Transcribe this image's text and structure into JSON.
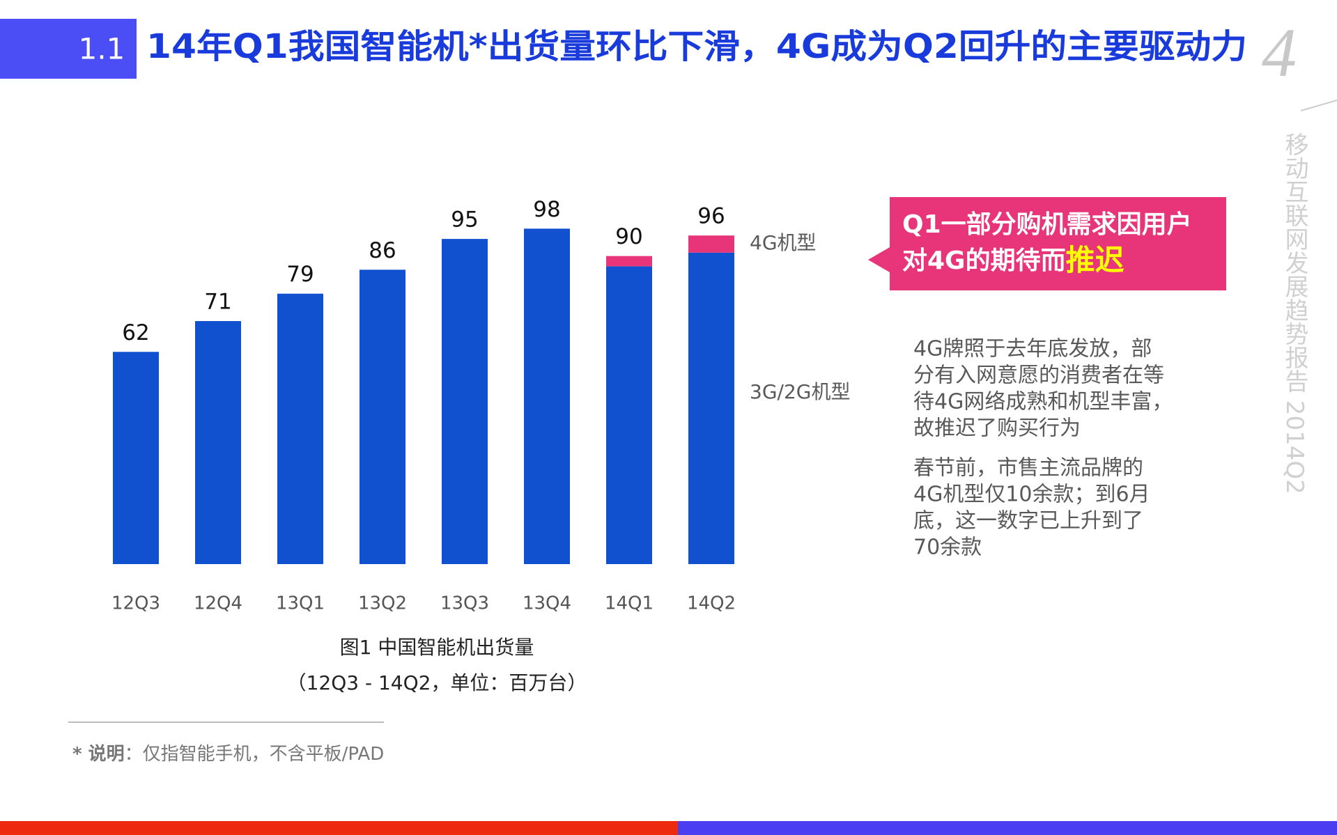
{
  "header": {
    "number": "1.1",
    "title": "14年Q1我国智能机*出货量环比下滑，4G成为Q2回升的主要驱动力",
    "page": "4",
    "report": "移动互联网发展趋势报告 2014Q2"
  },
  "chart_data": {
    "type": "stacked-bar",
    "categories": [
      "12Q3",
      "12Q4",
      "13Q1",
      "13Q2",
      "13Q3",
      "13Q4",
      "14Q1",
      "14Q2"
    ],
    "series": [
      {
        "name": "3G/2G机型",
        "color": "#1150cf",
        "values": [
          62,
          71,
          79,
          86,
          95,
          98,
          87,
          91
        ]
      },
      {
        "name": "4G机型",
        "color": "#e8357a",
        "values": [
          0,
          0,
          0,
          0,
          0,
          0,
          3,
          5
        ]
      }
    ],
    "totals": [
      62,
      71,
      79,
      86,
      95,
      98,
      90,
      96
    ],
    "caption": [
      "图1 中国智能机出货量",
      "（12Q3 - 14Q2，单位：百万台）"
    ]
  },
  "callout": {
    "lines": [
      "Q1一部分购机需求因用户",
      "对4G的期待而"
    ],
    "highlight": "推迟"
  },
  "paragraphs": [
    [
      "4G牌照于去年底发放，部",
      "分有入网意愿的消费者在等",
      "待4G网络成熟和机型丰富，",
      "故推迟了购买行为"
    ],
    [
      "春节前，市售主流品牌的",
      "4G机型仅10余款；到6月",
      "底，这一数字已上升到了",
      "70余款"
    ]
  ],
  "note": {
    "label": "* 说明",
    "text": "：仅指智能手机，不含平板/PAD"
  }
}
